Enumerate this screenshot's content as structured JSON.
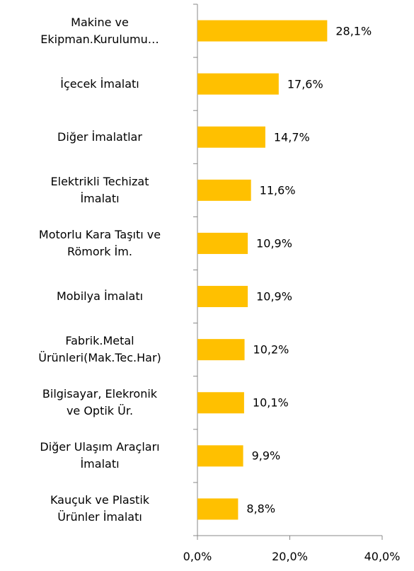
{
  "chart_data": {
    "type": "bar",
    "orientation": "horizontal",
    "categories": [
      "Makine ve\nEkipman.Kurulumu…",
      "İçecek İmalatı",
      "Diğer İmalatlar",
      "Elektrikli Techizat\nİmalatı",
      "Motorlu Kara Taşıtı ve\nRömork İm.",
      "Mobilya İmalatı",
      "Fabrik.Metal\nÜrünleri(Mak.Tec.Har)",
      "Bilgisayar, Elekronik\nve Optik Ür.",
      "Diğer Ulaşım Araçları\nİmalatı",
      "Kauçuk ve Plastik\nÜrünler İmalatı"
    ],
    "values": [
      28.1,
      17.6,
      14.7,
      11.6,
      10.9,
      10.9,
      10.2,
      10.1,
      9.9,
      8.8
    ],
    "value_labels": [
      "28,1%",
      "17,6%",
      "14,7%",
      "11,6%",
      "10,9%",
      "10,9%",
      "10,2%",
      "10,1%",
      "9,9%",
      "8,8%"
    ],
    "color": "#ffc000",
    "xlim": [
      0,
      40
    ],
    "xticks": [
      {
        "value": 0,
        "label": "0,0%"
      },
      {
        "value": 20,
        "label": "20,0%"
      },
      {
        "value": 40,
        "label": "40,0%"
      }
    ]
  }
}
